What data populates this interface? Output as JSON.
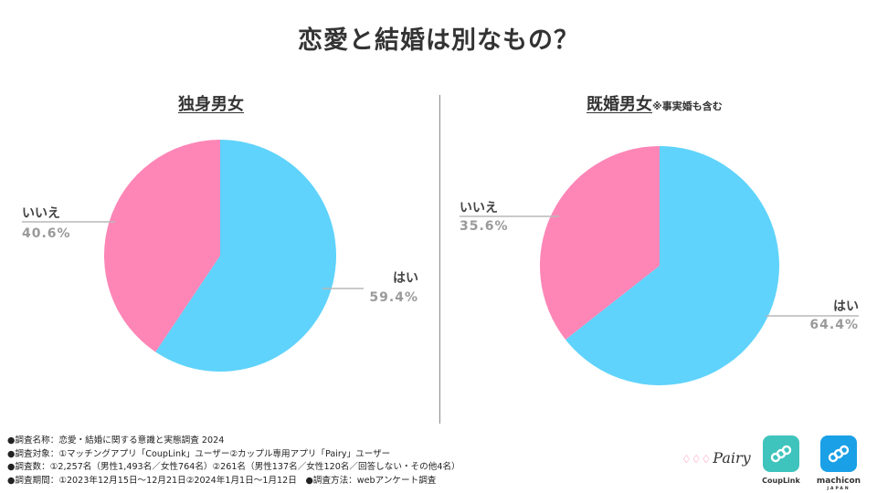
{
  "title": "恋愛と結婚は別なもの？",
  "panels": [
    {
      "title": "独身男女",
      "note": ""
    },
    {
      "title": "既婚男女",
      "note": "※事実婚も含む"
    }
  ],
  "chart_data": [
    {
      "type": "pie",
      "title": "独身男女",
      "slices": [
        {
          "label": "はい",
          "value": 59.4,
          "value_label": "59.4%",
          "color": "#5fd3fb"
        },
        {
          "label": "いいえ",
          "value": 40.6,
          "value_label": "40.6%",
          "color": "#fd86b7"
        }
      ]
    },
    {
      "type": "pie",
      "title": "既婚男女",
      "note": "※事実婚も含む",
      "slices": [
        {
          "label": "はい",
          "value": 64.4,
          "value_label": "64.4%",
          "color": "#5fd3fb"
        },
        {
          "label": "いいえ",
          "value": 35.6,
          "value_label": "35.6%",
          "color": "#fd86b7"
        }
      ]
    }
  ],
  "footer": {
    "lines": [
      "●調査名称：恋愛・結婚に関する意識と実態調査 2024",
      "●調査対象：①マッチングアプリ「CoupLink」ユーザー②カップル専用アプリ「Pairy」ユーザー",
      "●調査数：①2,257名（男性1,493名／女性764名）②261名（男性137名／女性120名／回答しない・その他4名）",
      "●調査期間：①2023年12月15日〜12月21日②2024年1月1日〜1月12日　●調査方法：webアンケート調査"
    ]
  },
  "logos": {
    "pairy": "Pairy",
    "couplink": "CoupLink",
    "machicon": "machicon",
    "machicon_sub": "JAPAN",
    "couplink_color": "#3fc3bd",
    "machicon_color": "#1aa0e6"
  }
}
